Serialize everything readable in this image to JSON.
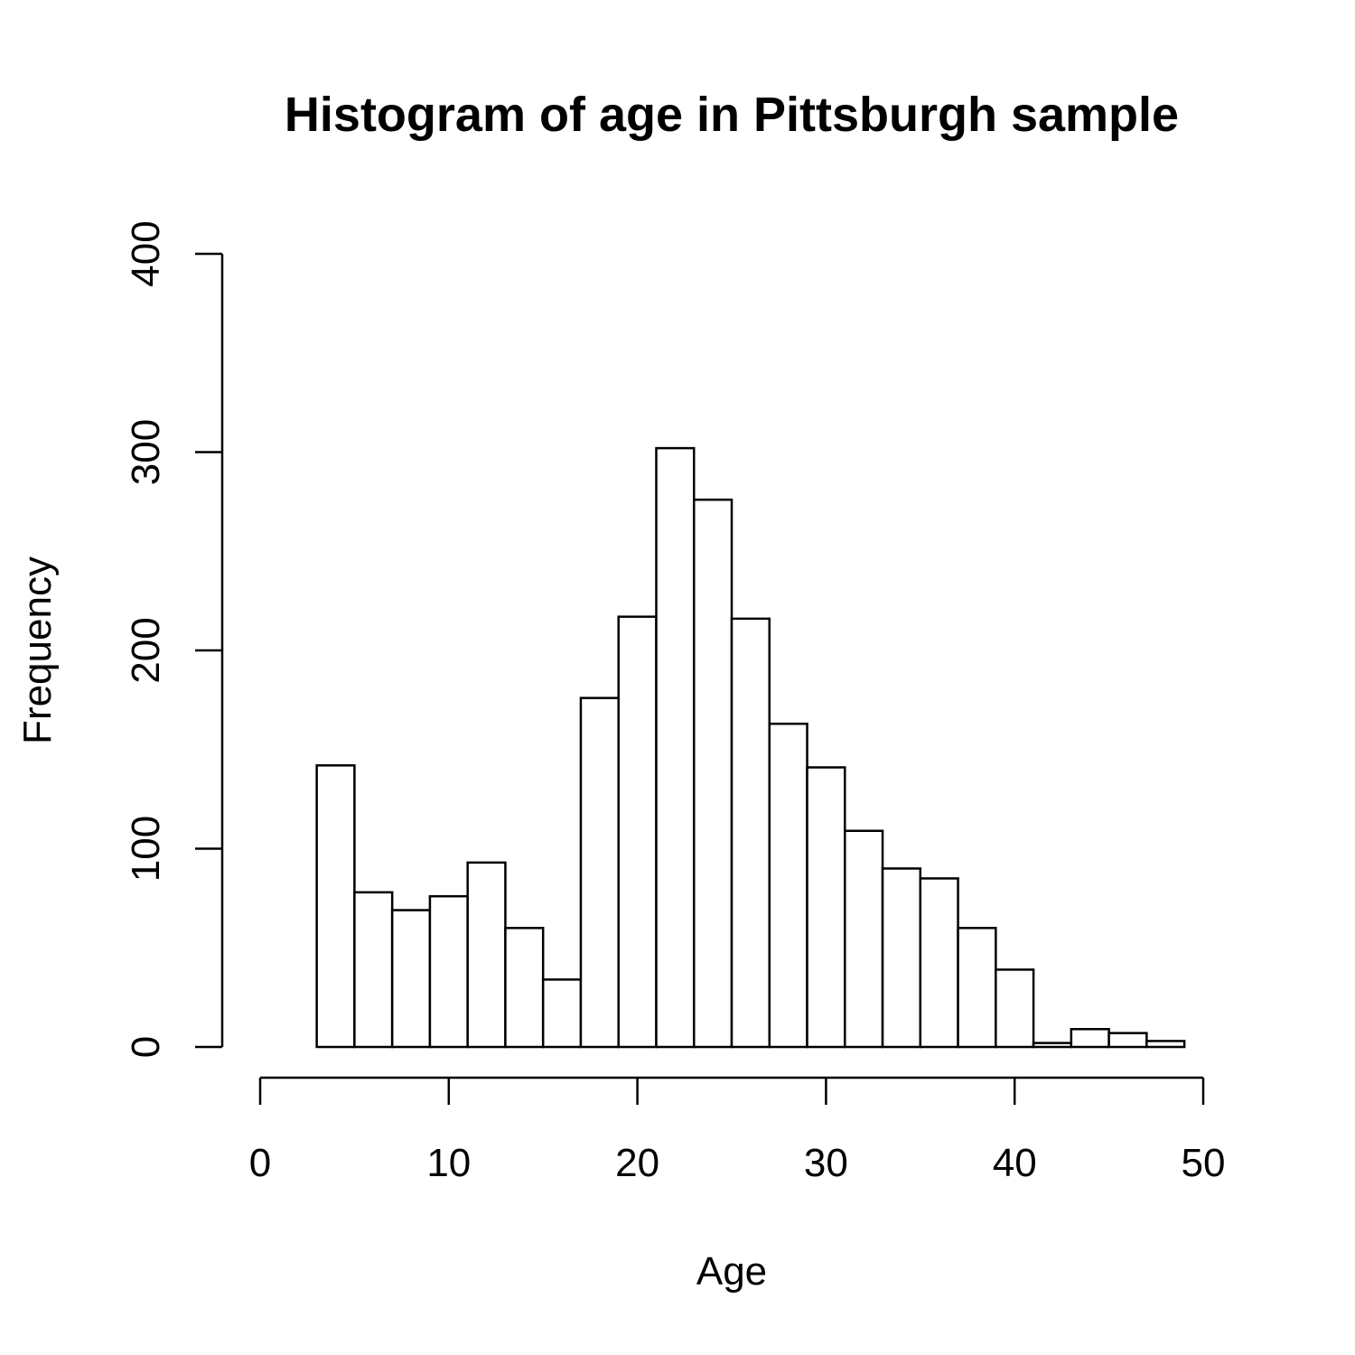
{
  "chart_data": {
    "type": "bar",
    "title": "Histogram of age in Pittsburgh sample",
    "xlabel": "Age",
    "ylabel": "Frequency",
    "xlim": [
      0,
      50
    ],
    "ylim": [
      0,
      400
    ],
    "x_ticks": [
      0,
      10,
      20,
      30,
      40,
      50
    ],
    "y_ticks": [
      0,
      100,
      200,
      300,
      400
    ],
    "grid": false,
    "bins": [
      {
        "start": 3,
        "end": 5,
        "count": 142
      },
      {
        "start": 5,
        "end": 7,
        "count": 78
      },
      {
        "start": 7,
        "end": 9,
        "count": 69
      },
      {
        "start": 9,
        "end": 11,
        "count": 76
      },
      {
        "start": 11,
        "end": 13,
        "count": 93
      },
      {
        "start": 13,
        "end": 15,
        "count": 60
      },
      {
        "start": 15,
        "end": 17,
        "count": 34
      },
      {
        "start": 17,
        "end": 19,
        "count": 176
      },
      {
        "start": 19,
        "end": 21,
        "count": 217
      },
      {
        "start": 21,
        "end": 23,
        "count": 302
      },
      {
        "start": 23,
        "end": 25,
        "count": 276
      },
      {
        "start": 25,
        "end": 27,
        "count": 216
      },
      {
        "start": 27,
        "end": 29,
        "count": 163
      },
      {
        "start": 29,
        "end": 31,
        "count": 141
      },
      {
        "start": 31,
        "end": 33,
        "count": 109
      },
      {
        "start": 33,
        "end": 35,
        "count": 90
      },
      {
        "start": 35,
        "end": 37,
        "count": 85
      },
      {
        "start": 37,
        "end": 39,
        "count": 60
      },
      {
        "start": 39,
        "end": 41,
        "count": 39
      },
      {
        "start": 41,
        "end": 43,
        "count": 2
      },
      {
        "start": 43,
        "end": 45,
        "count": 9
      },
      {
        "start": 45,
        "end": 47,
        "count": 7
      },
      {
        "start": 47,
        "end": 49,
        "count": 3
      }
    ]
  }
}
